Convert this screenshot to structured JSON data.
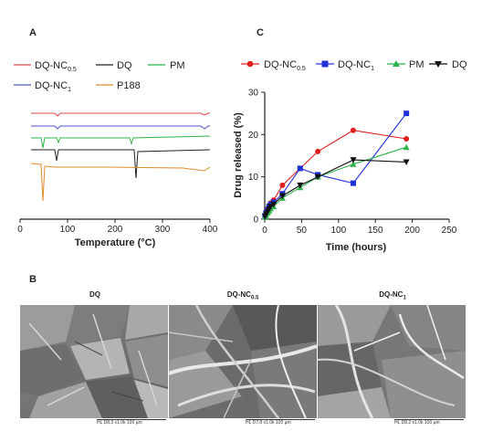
{
  "panels": {
    "a_label": "A",
    "b_label": "B",
    "c_label": "C"
  },
  "dsc": {
    "legend": [
      {
        "name": "DQ-NC",
        "sub": "0.5",
        "color": "#d94c4c"
      },
      {
        "name": "DQ",
        "sub": "",
        "color": "#222222"
      },
      {
        "name": "PM",
        "sub": "",
        "color": "#2fb34a"
      },
      {
        "name": "DQ-NC",
        "sub": "1",
        "color": "#4c56c8"
      },
      {
        "name": "P188",
        "sub": "",
        "color": "#e08b2a"
      }
    ],
    "xlabel": "Temperature (°C)",
    "xticks": [
      "0",
      "100",
      "200",
      "300",
      "400"
    ]
  },
  "chart_data": {
    "type": "line",
    "xlabel": "Time (hours)",
    "ylabel": "Drug released (%)",
    "xlim": [
      0,
      250
    ],
    "ylim": [
      0,
      30
    ],
    "xticks": [
      "0",
      "50",
      "100",
      "150",
      "200",
      "250"
    ],
    "yticks": [
      "0",
      "10",
      "20",
      "30"
    ],
    "legend_position": "top",
    "series": [
      {
        "name": "DQ-NC",
        "sub": "0.5",
        "color": "#e02020",
        "marker": "circle",
        "x": [
          0.5,
          2,
          4,
          6,
          8,
          12,
          24,
          48,
          72,
          120,
          192
        ],
        "y": [
          1,
          1.8,
          2.4,
          3.2,
          3.8,
          4.5,
          8,
          12,
          16,
          21,
          19
        ]
      },
      {
        "name": "DQ-NC",
        "sub": "1",
        "color": "#2030d8",
        "marker": "square",
        "x": [
          0.5,
          2,
          4,
          6,
          8,
          12,
          24,
          48,
          72,
          120,
          192
        ],
        "y": [
          0.8,
          1.5,
          2.2,
          3,
          3.5,
          4,
          6,
          12,
          10.5,
          8.5,
          25
        ]
      },
      {
        "name": "PM",
        "sub": "",
        "color": "#2fb34a",
        "marker": "triangle-up",
        "x": [
          0.5,
          2,
          4,
          6,
          8,
          12,
          24,
          48,
          72,
          120,
          192
        ],
        "y": [
          0.5,
          1,
          1.5,
          2,
          2.5,
          3,
          5,
          7.5,
          10,
          13,
          17
        ]
      },
      {
        "name": "DQ",
        "sub": "",
        "color": "#111111",
        "marker": "triangle-down",
        "x": [
          0.5,
          2,
          4,
          6,
          8,
          12,
          24,
          48,
          72,
          120,
          192
        ],
        "y": [
          0.6,
          1.2,
          1.8,
          2.4,
          3,
          3.5,
          5.5,
          8,
          10,
          14,
          13.5
        ]
      }
    ]
  },
  "sem": [
    {
      "title": "DQ",
      "sub": "",
      "scale": "HL   D8.3  x1.0k   100 µm"
    },
    {
      "title": "DQ-NC",
      "sub": "0.5",
      "scale": "HL   D7.8  x1.0k   100 µm"
    },
    {
      "title": "DQ-NC",
      "sub": "1",
      "scale": "HL   D8.2  x1.0k   100 µm"
    }
  ]
}
